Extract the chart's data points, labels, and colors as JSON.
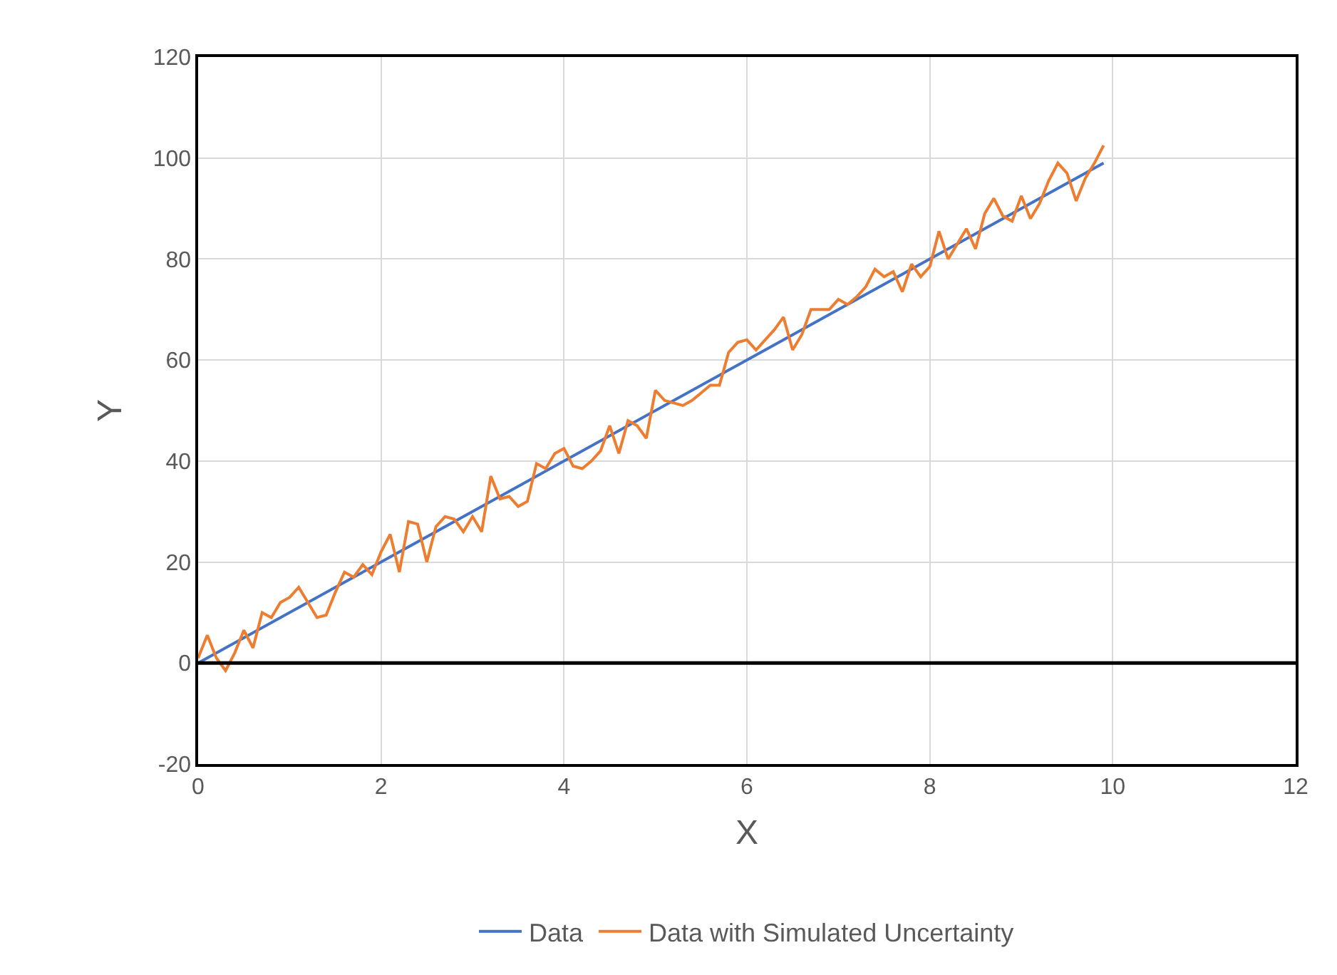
{
  "chart_data": {
    "type": "line",
    "xlabel": "X",
    "ylabel": "Y",
    "xlim": [
      0,
      12
    ],
    "xticks": [
      0,
      2,
      4,
      6,
      8,
      10,
      12
    ],
    "ylim": [
      -20,
      120
    ],
    "yticks": [
      -20,
      0,
      20,
      40,
      60,
      80,
      100,
      120
    ],
    "grid": true,
    "legend": "bottom",
    "marker": "none",
    "line_style": "solid",
    "ref_lines": [
      {
        "axis": "y",
        "value": 0,
        "label": null,
        "color": "#000000"
      }
    ],
    "series": [
      {
        "name": "Data",
        "color": "#4472c4",
        "x": [
          0,
          9.9
        ],
        "values": [
          0,
          99
        ]
      },
      {
        "name": "Data with Simulated Uncertainty",
        "color": "#ed7d31",
        "x": [
          0,
          0.1,
          0.2,
          0.3,
          0.4,
          0.5,
          0.6,
          0.7,
          0.8,
          0.9,
          1.0,
          1.1,
          1.2,
          1.3,
          1.4,
          1.5,
          1.6,
          1.7,
          1.8,
          1.9,
          2.0,
          2.1,
          2.2,
          2.3,
          2.4,
          2.5,
          2.6,
          2.7,
          2.8,
          2.9,
          3.0,
          3.1,
          3.2,
          3.3,
          3.4,
          3.5,
          3.6,
          3.7,
          3.8,
          3.9,
          4.0,
          4.1,
          4.2,
          4.3,
          4.4,
          4.5,
          4.6,
          4.7,
          4.8,
          4.9,
          5.0,
          5.1,
          5.2,
          5.3,
          5.4,
          5.5,
          5.6,
          5.7,
          5.8,
          5.9,
          6.0,
          6.1,
          6.2,
          6.3,
          6.4,
          6.5,
          6.6,
          6.7,
          6.8,
          6.9,
          7.0,
          7.1,
          7.2,
          7.3,
          7.4,
          7.5,
          7.6,
          7.7,
          7.8,
          7.9,
          8.0,
          8.1,
          8.2,
          8.3,
          8.4,
          8.5,
          8.6,
          8.7,
          8.8,
          8.9,
          9.0,
          9.1,
          9.2,
          9.3,
          9.4,
          9.5,
          9.6,
          9.7,
          9.8,
          9.9
        ],
        "values": [
          1,
          5.5,
          1,
          -1.5,
          2,
          6.5,
          3,
          10,
          9,
          12,
          13,
          15,
          12,
          9,
          9.5,
          14,
          18,
          17,
          19.5,
          17.5,
          22,
          25.5,
          18,
          28,
          27.5,
          20,
          27,
          29,
          28.5,
          26,
          29,
          26,
          37,
          32.5,
          33,
          31,
          32,
          39.5,
          38.5,
          41.5,
          42.5,
          39,
          38.5,
          40,
          42,
          47,
          41.5,
          48,
          47,
          44.5,
          54,
          52,
          51.5,
          51,
          52,
          53.5,
          55,
          55,
          61.5,
          63.5,
          64,
          62,
          64,
          66,
          68.5,
          62,
          65,
          70,
          70,
          70,
          72,
          71,
          72.5,
          74.5,
          78,
          76.5,
          77.5,
          73.5,
          79,
          76.5,
          78.5,
          85.5,
          80,
          83,
          86,
          82,
          89,
          92,
          88.5,
          87.5,
          92.5,
          88,
          91,
          95.5,
          99,
          97,
          91.5,
          96,
          99,
          102.5
        ]
      }
    ]
  }
}
